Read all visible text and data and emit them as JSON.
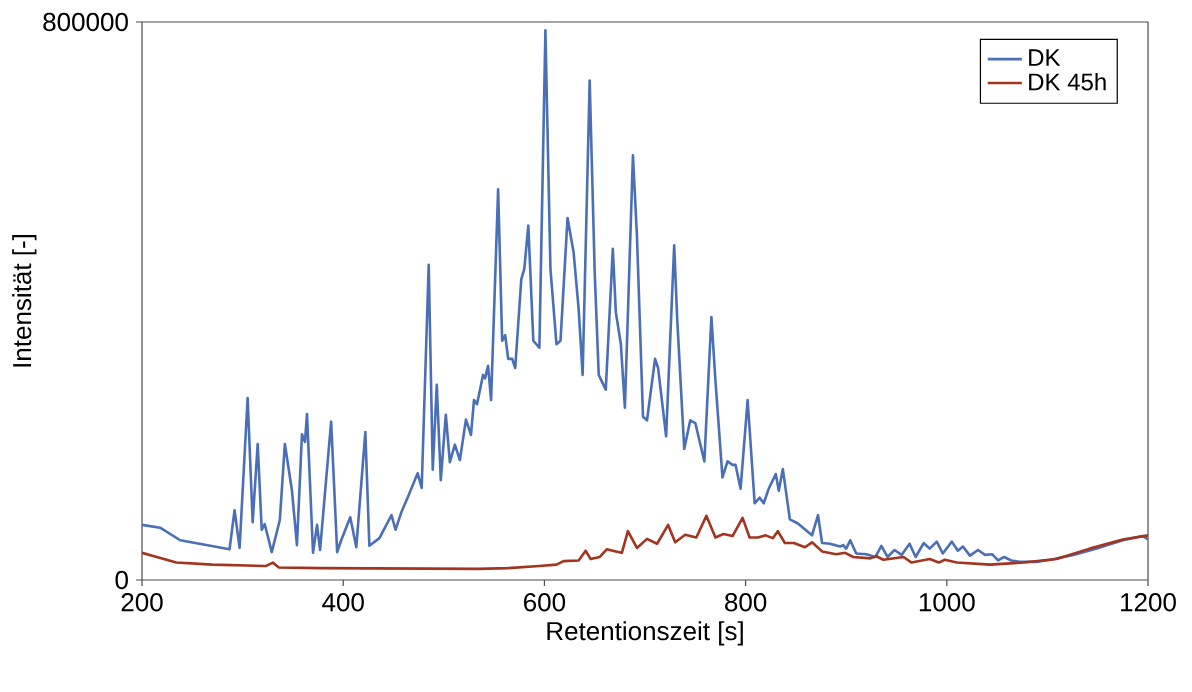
{
  "chart_data": {
    "type": "line",
    "xlabel": "Retentionszeit [s]",
    "ylabel": "Intensität [-]",
    "xlim": [
      200,
      1200
    ],
    "ylim": [
      0,
      800000
    ],
    "xticks": [
      200,
      400,
      600,
      800,
      1000,
      1200
    ],
    "yticks": [
      0,
      800000
    ],
    "legend": "top right",
    "series": [
      {
        "name": "DK",
        "color": "#4a6fb7",
        "x": [
          200,
          218,
          238,
          268,
          287,
          292,
          297,
          305,
          310,
          315,
          319,
          322,
          329,
          337,
          342,
          349,
          354,
          359,
          362,
          364,
          370,
          374,
          377,
          388,
          394,
          398,
          407,
          413,
          422,
          426,
          436,
          448,
          452,
          458,
          464,
          470,
          474,
          478,
          485,
          489,
          493,
          497,
          502,
          506,
          511,
          516,
          522,
          527,
          530,
          533,
          539,
          541,
          544,
          547,
          554,
          558,
          561,
          564,
          568,
          571,
          577,
          580,
          584,
          589,
          595,
          601,
          606,
          612,
          616,
          623,
          629,
          634,
          638,
          645,
          650,
          654,
          661,
          668,
          671,
          676,
          680,
          688,
          692,
          698,
          702,
          710,
          713,
          721,
          729,
          732,
          739,
          745,
          750,
          759,
          766,
          770,
          777,
          782,
          787,
          790,
          795,
          802,
          809,
          814,
          818,
          823,
          830,
          833,
          837,
          844,
          852,
          866,
          872,
          876,
          884,
          894,
          897,
          900,
          904,
          910,
          920,
          929,
          935,
          941,
          948,
          955,
          963,
          969,
          977,
          983,
          990,
          996,
          1005,
          1011,
          1016,
          1023,
          1031,
          1038,
          1045,
          1051,
          1057,
          1064,
          1073,
          1089,
          1103,
          1126,
          1149,
          1175,
          1195,
          1200
        ],
        "values": [
          79000,
          75000,
          57000,
          49000,
          44000,
          100000,
          46000,
          261000,
          83000,
          195000,
          72000,
          80000,
          40000,
          86000,
          195000,
          129000,
          50000,
          209000,
          198000,
          238000,
          39000,
          79000,
          43000,
          227000,
          40000,
          57000,
          90000,
          47000,
          212000,
          49000,
          60000,
          93000,
          72000,
          98000,
          118000,
          139000,
          153000,
          132000,
          452000,
          158000,
          280000,
          143000,
          237000,
          169000,
          194000,
          172000,
          230000,
          208000,
          258000,
          252000,
          294000,
          289000,
          307000,
          258000,
          560000,
          343000,
          351000,
          317000,
          317000,
          304000,
          431000,
          446000,
          508000,
          343000,
          333000,
          788000,
          446000,
          338000,
          343000,
          519000,
          470000,
          389000,
          294000,
          716000,
          441000,
          294000,
          273000,
          475000,
          384000,
          338000,
          247000,
          609000,
          493000,
          234000,
          229000,
          317000,
          304000,
          206000,
          480000,
          374000,
          188000,
          229000,
          225000,
          170000,
          377000,
          286000,
          147000,
          170000,
          165000,
          165000,
          131000,
          258000,
          110000,
          118000,
          110000,
          131000,
          152000,
          128000,
          159000,
          87000,
          81000,
          64000,
          93000,
          53000,
          52000,
          48000,
          50000,
          45000,
          57000,
          38000,
          37000,
          33000,
          49000,
          33000,
          43000,
          36000,
          52000,
          33000,
          53000,
          45000,
          55000,
          38000,
          55000,
          42000,
          48000,
          35000,
          43000,
          36000,
          37000,
          28000,
          33000,
          28000,
          26000,
          26000,
          29000,
          36000,
          45000,
          57000,
          63000,
          58000
        ]
      },
      {
        "name": "DK 45h",
        "color": "#a3341f",
        "x": [
          200,
          212,
          234,
          270,
          323,
          330,
          336,
          377,
          535,
          564,
          595,
          612,
          619,
          634,
          641,
          646,
          655,
          662,
          671,
          677,
          683,
          692,
          702,
          712,
          723,
          730,
          740,
          751,
          761,
          770,
          778,
          787,
          797,
          804,
          812,
          820,
          827,
          832,
          839,
          848,
          859,
          866,
          876,
          890,
          899,
          907,
          924,
          930,
          937,
          957,
          965,
          983,
          992,
          998,
          1010,
          1043,
          1076,
          1109,
          1142,
          1175,
          1200
        ],
        "values": [
          39000,
          34000,
          25000,
          22000,
          20000,
          25000,
          18000,
          17000,
          16000,
          17000,
          20000,
          22000,
          27000,
          28000,
          42000,
          30000,
          33000,
          44000,
          41000,
          39000,
          70000,
          46000,
          59000,
          52000,
          79000,
          54000,
          65000,
          61000,
          92000,
          61000,
          66000,
          63000,
          89000,
          61000,
          61000,
          64000,
          60000,
          70000,
          53000,
          53000,
          47000,
          54000,
          41000,
          37000,
          39000,
          33000,
          31000,
          34000,
          29000,
          33000,
          25000,
          30000,
          25000,
          29000,
          25000,
          22000,
          25000,
          30000,
          45000,
          58000,
          64000
        ]
      }
    ]
  }
}
